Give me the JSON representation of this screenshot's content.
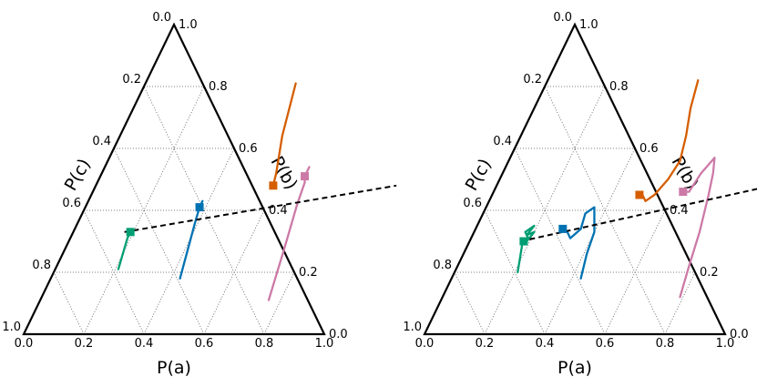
{
  "chart_data": [
    {
      "type": "ternary-line",
      "axes": {
        "a": {
          "label": "P(a)",
          "ticks": [
            "0.0",
            "0.2",
            "0.4",
            "0.6",
            "0.8",
            "1.0"
          ]
        },
        "b": {
          "label": "P(b)",
          "ticks": [
            "0.0",
            "0.2",
            "0.4",
            "0.6",
            "0.8",
            "1.0"
          ]
        },
        "c": {
          "label": "P(c)",
          "ticks": [
            "0.0",
            "0.2",
            "0.4",
            "0.6",
            "0.8",
            "1.0"
          ]
        }
      },
      "grid": true,
      "dashed_line": [
        [
          0.17,
          0.33
        ],
        [
          1.0,
          0.48
        ]
      ],
      "series": [
        {
          "color": "#009E73",
          "end": [
            0.19,
            0.33
          ],
          "points": [
            [
              0.21,
              0.21
            ],
            [
              0.2,
              0.26
            ],
            [
              0.19,
              0.31
            ],
            [
              0.19,
              0.33
            ]
          ]
        },
        {
          "color": "#0072B2",
          "end": [
            0.38,
            0.41
          ],
          "points": [
            [
              0.43,
              0.18
            ],
            [
              0.41,
              0.27
            ],
            [
              0.39,
              0.36
            ],
            [
              0.38,
              0.41
            ],
            [
              0.38,
              0.43
            ]
          ]
        },
        {
          "color": "#D55E00",
          "end": [
            0.59,
            0.48
          ],
          "points": [
            [
              0.5,
              0.81
            ],
            [
              0.54,
              0.64
            ],
            [
              0.58,
              0.52
            ],
            [
              0.59,
              0.48
            ]
          ]
        },
        {
          "color": "#CC79A7",
          "end": [
            0.68,
            0.51
          ],
          "points": [
            [
              0.76,
              0.11
            ],
            [
              0.73,
              0.27
            ],
            [
              0.7,
              0.42
            ],
            [
              0.69,
              0.49
            ],
            [
              0.68,
              0.51
            ],
            [
              0.68,
              0.54
            ]
          ]
        }
      ]
    },
    {
      "type": "ternary-line",
      "axes": {
        "a": {
          "label": "P(a)",
          "ticks": [
            "0.0",
            "0.2",
            "0.4",
            "0.6",
            "0.8",
            "1.0"
          ]
        },
        "b": {
          "label": "P(b)",
          "ticks": [
            "0.0",
            "0.2",
            "0.4",
            "0.6",
            "0.8",
            "1.0"
          ]
        },
        "c": {
          "label": "P(c)",
          "ticks": [
            "0.0",
            "0.2",
            "0.4",
            "0.6",
            "0.8",
            "1.0"
          ]
        }
      },
      "grid": true,
      "dashed_line": [
        [
          0.17,
          0.3
        ],
        [
          1.0,
          0.5
        ]
      ],
      "series": [
        {
          "color": "#009E73",
          "end": [
            0.18,
            0.3
          ],
          "points": [
            [
              0.21,
              0.2
            ],
            [
              0.19,
              0.26
            ],
            [
              0.18,
              0.29
            ],
            [
              0.19,
              0.31
            ],
            [
              0.17,
              0.33
            ],
            [
              0.19,
              0.35
            ],
            [
              0.18,
              0.32
            ],
            [
              0.2,
              0.33
            ],
            [
              0.19,
              0.3
            ]
          ]
        },
        {
          "color": "#0072B2",
          "end": [
            0.29,
            0.34
          ],
          "points": [
            [
              0.43,
              0.18
            ],
            [
              0.41,
              0.26
            ],
            [
              0.4,
              0.33
            ],
            [
              0.38,
              0.37
            ],
            [
              0.36,
              0.41
            ],
            [
              0.34,
              0.39
            ],
            [
              0.35,
              0.34
            ],
            [
              0.33,
              0.31
            ],
            [
              0.31,
              0.33
            ],
            [
              0.29,
              0.34
            ]
          ]
        },
        {
          "color": "#D55E00",
          "end": [
            0.49,
            0.45
          ],
          "points": [
            [
              0.5,
              0.82
            ],
            [
              0.52,
              0.73
            ],
            [
              0.55,
              0.64
            ],
            [
              0.57,
              0.56
            ],
            [
              0.56,
              0.5
            ],
            [
              0.54,
              0.45
            ],
            [
              0.52,
              0.43
            ],
            [
              0.5,
              0.45
            ],
            [
              0.49,
              0.45
            ]
          ]
        },
        {
          "color": "#CC79A7",
          "end": [
            0.63,
            0.46
          ],
          "points": [
            [
              0.79,
              0.12
            ],
            [
              0.77,
              0.22
            ],
            [
              0.75,
              0.33
            ],
            [
              0.72,
              0.45
            ],
            [
              0.7,
              0.52
            ],
            [
              0.68,
              0.57
            ],
            [
              0.66,
              0.52
            ],
            [
              0.65,
              0.46
            ],
            [
              0.63,
              0.46
            ]
          ]
        }
      ]
    }
  ]
}
